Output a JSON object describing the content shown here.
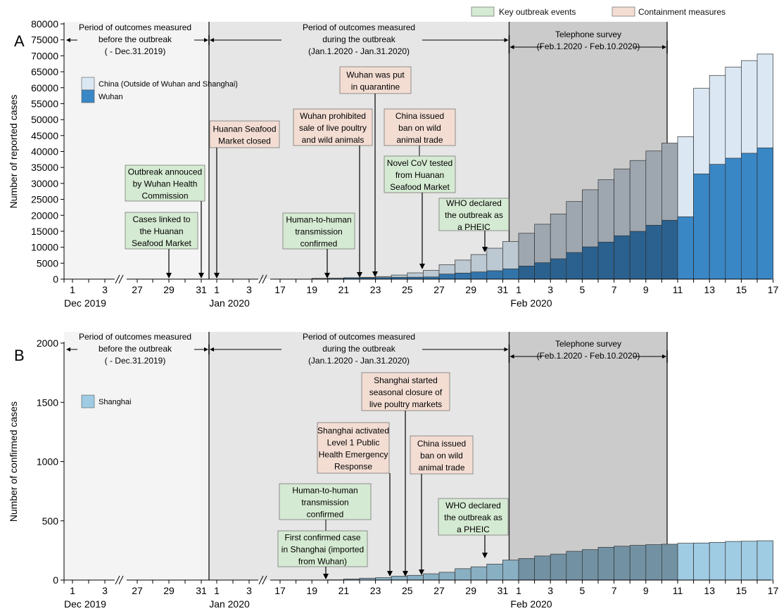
{
  "legend_top": {
    "key_events": {
      "label": "Key outbreak events",
      "color": "#d5ead2"
    },
    "containment": {
      "label": "Containment measures",
      "color": "#f3ddd3"
    }
  },
  "colors": {
    "wuhan": "#3a87c6",
    "china_outside": "#dbe8f4",
    "shanghai": "#9fcbe3",
    "shade_pre": "#f4f4f4",
    "shade_during": "#e6e6e6",
    "shade_survey": "#cbcbcb",
    "event_box": "#d5ead2",
    "containment_box": "#f3ddd3"
  },
  "x_axis": {
    "ticks": [
      {
        "label": "1",
        "pos": 1,
        "date": "2019-12-01"
      },
      {
        "label": "3",
        "pos": 3,
        "date": "2019-12-03"
      },
      {
        "label": "27",
        "pos": 6,
        "date": "2019-12-27"
      },
      {
        "label": "29",
        "pos": 8,
        "date": "2019-12-29"
      },
      {
        "label": "31",
        "pos": 10,
        "date": "2019-12-31"
      },
      {
        "label": "1",
        "pos": 11,
        "date": "2020-01-01"
      },
      {
        "label": "3",
        "pos": 13,
        "date": "2020-01-03"
      },
      {
        "label": "17",
        "pos": 16,
        "date": "2020-01-17"
      },
      {
        "label": "19",
        "pos": 18,
        "date": "2020-01-19"
      },
      {
        "label": "21",
        "pos": 20,
        "date": "2020-01-21"
      },
      {
        "label": "23",
        "pos": 22,
        "date": "2020-01-23"
      },
      {
        "label": "25",
        "pos": 24,
        "date": "2020-01-25"
      },
      {
        "label": "27",
        "pos": 26,
        "date": "2020-01-27"
      },
      {
        "label": "29",
        "pos": 28,
        "date": "2020-01-29"
      },
      {
        "label": "31",
        "pos": 30,
        "date": "2020-01-31"
      },
      {
        "label": "1",
        "pos": 31,
        "date": "2020-02-01"
      },
      {
        "label": "3",
        "pos": 33,
        "date": "2020-02-03"
      },
      {
        "label": "5",
        "pos": 35,
        "date": "2020-02-05"
      },
      {
        "label": "7",
        "pos": 37,
        "date": "2020-02-07"
      },
      {
        "label": "9",
        "pos": 39,
        "date": "2020-02-09"
      },
      {
        "label": "11",
        "pos": 41,
        "date": "2020-02-11"
      },
      {
        "label": "13",
        "pos": 43,
        "date": "2020-02-13"
      },
      {
        "label": "15",
        "pos": 45,
        "date": "2020-02-15"
      },
      {
        "label": "17",
        "pos": 47,
        "date": "2020-02-17"
      }
    ],
    "month_labels": [
      {
        "label": "Dec 2019",
        "pos": 1
      },
      {
        "label": "Jan 2020",
        "pos": 11
      },
      {
        "label": "Feb 2020",
        "pos": 31
      }
    ]
  },
  "chart_data": [
    {
      "panel": "A",
      "type": "bar",
      "ylabel": "Number of reported cases",
      "ylim": [
        0,
        80000
      ],
      "yticks": [
        0,
        5000,
        10000,
        15000,
        20000,
        25000,
        30000,
        35000,
        40000,
        45000,
        50000,
        55000,
        60000,
        65000,
        70000,
        75000,
        80000
      ],
      "legend": [
        {
          "name": "China (Outside of Wuhan and Shanghai)",
          "color": "#dbe8f4"
        },
        {
          "name": "Wuhan",
          "color": "#3a87c6"
        }
      ],
      "bars": [
        {
          "date": "2020-01-19",
          "pos": 18,
          "wuhan": 198,
          "china": 200
        },
        {
          "date": "2020-01-20",
          "pos": 19,
          "wuhan": 258,
          "china": 290
        },
        {
          "date": "2020-01-21",
          "pos": 20,
          "wuhan": 363,
          "china": 440
        },
        {
          "date": "2020-01-22",
          "pos": 21,
          "wuhan": 425,
          "china": 570
        },
        {
          "date": "2020-01-23",
          "pos": 22,
          "wuhan": 495,
          "china": 830
        },
        {
          "date": "2020-01-24",
          "pos": 23,
          "wuhan": 572,
          "china": 1290
        },
        {
          "date": "2020-01-25",
          "pos": 24,
          "wuhan": 618,
          "china": 1975
        },
        {
          "date": "2020-01-26",
          "pos": 25,
          "wuhan": 698,
          "china": 2744
        },
        {
          "date": "2020-01-27",
          "pos": 26,
          "wuhan": 1590,
          "china": 4515
        },
        {
          "date": "2020-01-28",
          "pos": 27,
          "wuhan": 1905,
          "china": 5974
        },
        {
          "date": "2020-01-29",
          "pos": 28,
          "wuhan": 2261,
          "china": 7711
        },
        {
          "date": "2020-01-30",
          "pos": 29,
          "wuhan": 2639,
          "china": 9692
        },
        {
          "date": "2020-01-31",
          "pos": 30,
          "wuhan": 3215,
          "china": 11791
        },
        {
          "date": "2020-02-01",
          "pos": 31,
          "wuhan": 4109,
          "china": 14380
        },
        {
          "date": "2020-02-02",
          "pos": 32,
          "wuhan": 5142,
          "china": 17205
        },
        {
          "date": "2020-02-03",
          "pos": 33,
          "wuhan": 6384,
          "china": 20438
        },
        {
          "date": "2020-02-04",
          "pos": 34,
          "wuhan": 8351,
          "china": 24324
        },
        {
          "date": "2020-02-05",
          "pos": 35,
          "wuhan": 10117,
          "china": 28018
        },
        {
          "date": "2020-02-06",
          "pos": 36,
          "wuhan": 11618,
          "china": 31161
        },
        {
          "date": "2020-02-07",
          "pos": 37,
          "wuhan": 13603,
          "china": 34546
        },
        {
          "date": "2020-02-08",
          "pos": 38,
          "wuhan": 14982,
          "china": 37198
        },
        {
          "date": "2020-02-09",
          "pos": 39,
          "wuhan": 16902,
          "china": 40171
        },
        {
          "date": "2020-02-10",
          "pos": 40,
          "wuhan": 18454,
          "china": 42638
        },
        {
          "date": "2020-02-11",
          "pos": 41,
          "wuhan": 19558,
          "china": 44653
        },
        {
          "date": "2020-02-12",
          "pos": 42,
          "wuhan": 32994,
          "china": 59804
        },
        {
          "date": "2020-02-13",
          "pos": 43,
          "wuhan": 35991,
          "china": 63851
        },
        {
          "date": "2020-02-14",
          "pos": 44,
          "wuhan": 37914,
          "china": 66492
        },
        {
          "date": "2020-02-15",
          "pos": 45,
          "wuhan": 39462,
          "china": 68500
        },
        {
          "date": "2020-02-16",
          "pos": 46,
          "wuhan": 41152,
          "china": 70548
        }
      ],
      "periods": {
        "pre": {
          "line1": "Period of outcomes measured",
          "line2": "before the outbreak",
          "line3": "( - Dec.31.2019)"
        },
        "during": {
          "line1": "Period of outcomes measured",
          "line2": "during the outbreak",
          "line3": "(Jan.1.2020 - Jan.31.2020)"
        },
        "survey": {
          "line1": "Telephone survey",
          "line2": "(Feb.1.2020 - Feb.10.2020)"
        }
      },
      "annotations": [
        {
          "kind": "event",
          "pos": 10,
          "lines": [
            "Outbreak annouced",
            "by Wuhan Health",
            "Commission"
          ]
        },
        {
          "kind": "event",
          "pos": 8,
          "lines": [
            "Cases linked to",
            "the Huanan",
            "Seafood Market"
          ]
        },
        {
          "kind": "containment",
          "pos": 11,
          "lines": [
            "Huanan Seafood",
            "Market closed"
          ]
        },
        {
          "kind": "containment",
          "pos": 21,
          "lines": [
            "Wuhan prohibited",
            "sale of live poultry",
            "and wild animals"
          ]
        },
        {
          "kind": "containment",
          "pos": 22,
          "lines": [
            "Wuhan was put",
            "in quarantine"
          ]
        },
        {
          "kind": "containment",
          "pos": 25,
          "lines": [
            "China issued",
            "ban on wild",
            "animal trade"
          ]
        },
        {
          "kind": "event",
          "pos": 25,
          "lines": [
            "Novel CoV tested",
            "from Huanan",
            "Seafood Market"
          ]
        },
        {
          "kind": "event",
          "pos": 19,
          "lines": [
            "Human-to-human",
            "transmission",
            "confirmed"
          ]
        },
        {
          "kind": "event",
          "pos": 29,
          "lines": [
            "WHO declared",
            "the outbreak as",
            "a PHEIC"
          ]
        }
      ],
      "panel_label": "A"
    },
    {
      "panel": "B",
      "type": "bar",
      "ylabel": "Number of confirmed cases",
      "ylim": [
        0,
        2000
      ],
      "yticks": [
        0,
        500,
        1000,
        1500,
        2000
      ],
      "legend": [
        {
          "name": "Shanghai",
          "color": "#9fcbe3"
        }
      ],
      "bars": [
        {
          "date": "2020-01-20",
          "pos": 19,
          "value": 2
        },
        {
          "date": "2020-01-21",
          "pos": 20,
          "value": 9
        },
        {
          "date": "2020-01-22",
          "pos": 21,
          "value": 16
        },
        {
          "date": "2020-01-23",
          "pos": 22,
          "value": 20
        },
        {
          "date": "2020-01-24",
          "pos": 23,
          "value": 33
        },
        {
          "date": "2020-01-25",
          "pos": 24,
          "value": 40
        },
        {
          "date": "2020-01-26",
          "pos": 25,
          "value": 53
        },
        {
          "date": "2020-01-27",
          "pos": 26,
          "value": 66
        },
        {
          "date": "2020-01-28",
          "pos": 27,
          "value": 96
        },
        {
          "date": "2020-01-29",
          "pos": 28,
          "value": 112
        },
        {
          "date": "2020-01-30",
          "pos": 29,
          "value": 135
        },
        {
          "date": "2020-01-31",
          "pos": 30,
          "value": 169
        },
        {
          "date": "2020-02-01",
          "pos": 31,
          "value": 182
        },
        {
          "date": "2020-02-02",
          "pos": 32,
          "value": 203
        },
        {
          "date": "2020-02-03",
          "pos": 33,
          "value": 219
        },
        {
          "date": "2020-02-04",
          "pos": 34,
          "value": 243
        },
        {
          "date": "2020-02-05",
          "pos": 35,
          "value": 257
        },
        {
          "date": "2020-02-06",
          "pos": 36,
          "value": 277
        },
        {
          "date": "2020-02-07",
          "pos": 37,
          "value": 286
        },
        {
          "date": "2020-02-08",
          "pos": 38,
          "value": 293
        },
        {
          "date": "2020-02-09",
          "pos": 39,
          "value": 299
        },
        {
          "date": "2020-02-10",
          "pos": 40,
          "value": 303
        },
        {
          "date": "2020-02-11",
          "pos": 41,
          "value": 311
        },
        {
          "date": "2020-02-12",
          "pos": 42,
          "value": 313
        },
        {
          "date": "2020-02-13",
          "pos": 43,
          "value": 318
        },
        {
          "date": "2020-02-14",
          "pos": 44,
          "value": 326
        },
        {
          "date": "2020-02-15",
          "pos": 45,
          "value": 328
        },
        {
          "date": "2020-02-16",
          "pos": 46,
          "value": 332
        }
      ],
      "periods": {
        "pre": {
          "line1": "Period of outcomes measured",
          "line2": "before the outbreak",
          "line3": "( - Dec.31.2019)"
        },
        "during": {
          "line1": "Period of outcomes measured",
          "line2": "during the outbreak",
          "line3": "(Jan.1.2020 - Jan.31.2020)"
        },
        "survey": {
          "line1": "Telephone survey",
          "line2": "(Feb.1.2020 - Feb.10.2020)"
        }
      },
      "annotations": [
        {
          "kind": "containment",
          "pos": 24,
          "lines": [
            "Shanghai started",
            "seasonal closure of",
            "live poultry markets"
          ]
        },
        {
          "kind": "containment",
          "pos": 23,
          "lines": [
            "Shanghai activated",
            "Level 1 Public",
            "Health Emergency",
            "Response"
          ]
        },
        {
          "kind": "containment",
          "pos": 25,
          "lines": [
            "China issued",
            "ban on wild",
            "animal trade"
          ]
        },
        {
          "kind": "event",
          "pos": 19,
          "lines": [
            "Human-to-human",
            "transmission",
            "confirmed"
          ]
        },
        {
          "kind": "event",
          "pos": 19,
          "lines": [
            "First confirmed case",
            "in Shanghai (imported",
            "from Wuhan)"
          ]
        },
        {
          "kind": "event",
          "pos": 29,
          "lines": [
            "WHO declared",
            "the outbreak as",
            "a PHEIC"
          ]
        }
      ],
      "panel_label": "B"
    }
  ]
}
